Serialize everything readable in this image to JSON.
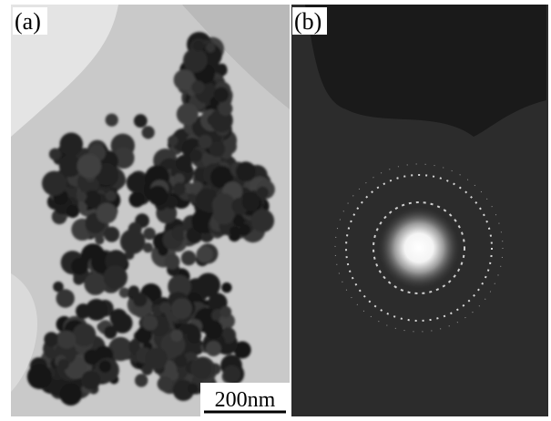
{
  "panels": [
    {
      "label": "(a)"
    },
    {
      "label": "(b)"
    }
  ],
  "scale_bar": {
    "label": "200nm"
  }
}
